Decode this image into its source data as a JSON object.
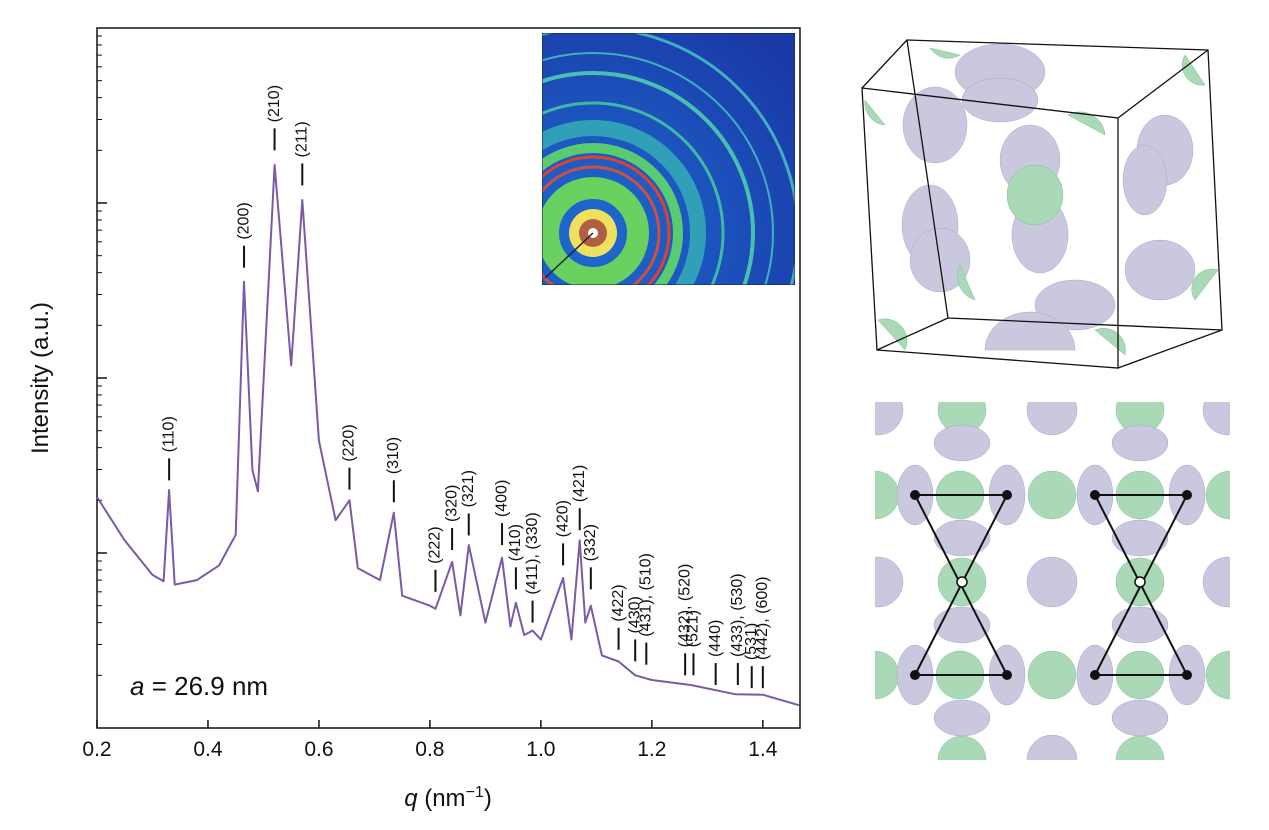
{
  "chart_data": {
    "type": "line",
    "log_y": true,
    "ytick_labels": false,
    "ylabel": "Intensity (a.u.)",
    "xlabel": {
      "symbol": "q",
      "unit": "(nm",
      "exponent": "−1",
      "close": ")"
    },
    "note": {
      "symbol": "a",
      "text": "= 26.9 nm"
    },
    "xlim": [
      0.2,
      1.467
    ],
    "ylim": [
      1,
      10000
    ],
    "xticks": [
      0.2,
      0.4,
      0.6,
      0.8,
      {
        "value": 1,
        "label": "1.0"
      },
      1.2,
      1.4
    ],
    "yticks": [
      10,
      100,
      1000
    ],
    "color": "#7a5aa8",
    "x": [
      0.2,
      0.25,
      0.3,
      0.32,
      0.33,
      0.34,
      0.38,
      0.42,
      0.45,
      0.465,
      0.48,
      0.49,
      0.52,
      0.55,
      0.57,
      0.6,
      0.63,
      0.655,
      0.67,
      0.71,
      0.735,
      0.75,
      0.8,
      0.81,
      0.84,
      0.855,
      0.87,
      0.9,
      0.93,
      0.945,
      0.955,
      0.97,
      0.985,
      1.0,
      1.04,
      1.055,
      1.07,
      1.08,
      1.09,
      1.11,
      1.14,
      1.17,
      1.2,
      1.27,
      1.35,
      1.4,
      1.465
    ],
    "values": [
      20.9,
      11.8,
      7.5,
      6.9,
      22.9,
      6.6,
      7.0,
      8.5,
      12.7,
      355,
      29.8,
      22.5,
      1650,
      118,
      1040,
      44,
      15.4,
      20,
      8.2,
      7.0,
      17,
      5.7,
      5.0,
      4.8,
      8.9,
      4.4,
      11.1,
      4.0,
      9.4,
      3.8,
      5.2,
      3.4,
      3.6,
      3.2,
      7.2,
      3.2,
      11.8,
      4.0,
      5.0,
      2.6,
      2.4,
      2.0,
      1.88,
      1.76,
      1.56,
      1.55,
      1.35
    ],
    "annotations": [
      {
        "label": "(110)",
        "x": 0.33,
        "y": 26
      },
      {
        "label": "(200)",
        "x": 0.465,
        "y": 427
      },
      {
        "label": "(210)",
        "x": 0.52,
        "y": 2000
      },
      {
        "label": "(211)",
        "x": 0.57,
        "y": 1260
      },
      {
        "label": "(220)",
        "x": 0.655,
        "y": 23
      },
      {
        "label": "(310)",
        "x": 0.735,
        "y": 19.5
      },
      {
        "label": "(222)",
        "x": 0.81,
        "y": 6.0
      },
      {
        "label": "(320)",
        "x": 0.84,
        "y": 10.4
      },
      {
        "label": "(321)",
        "x": 0.87,
        "y": 12.6
      },
      {
        "label": "(400)",
        "x": 0.93,
        "y": 11.1
      },
      {
        "label": "(410)",
        "x": 0.955,
        "y": 6.2
      },
      {
        "label": "(411), (330)",
        "x": 0.985,
        "y": 4.0
      },
      {
        "label": "(420)",
        "x": 1.04,
        "y": 8.5
      },
      {
        "label": "(421)",
        "x": 1.07,
        "y": 13.5
      },
      {
        "label": "(332)",
        "x": 1.09,
        "y": 6.2
      },
      {
        "label": "(422)",
        "x": 1.14,
        "y": 2.8
      },
      {
        "label": "(430)",
        "x": 1.17,
        "y": 2.4
      },
      {
        "label": "(431), (510)",
        "x": 1.19,
        "y": 2.3
      },
      {
        "label": "(432), (520)",
        "x": 1.26,
        "y": 2.0
      },
      {
        "label": "(521)",
        "x": 1.275,
        "y": 2.0
      },
      {
        "label": "(440)",
        "x": 1.315,
        "y": 1.76
      },
      {
        "label": "(433), (530)",
        "x": 1.355,
        "y": 1.76
      },
      {
        "label": "(531)",
        "x": 1.38,
        "y": 1.69
      },
      {
        "label": "(442), (600)",
        "x": 1.4,
        "y": 1.69
      }
    ]
  }
}
